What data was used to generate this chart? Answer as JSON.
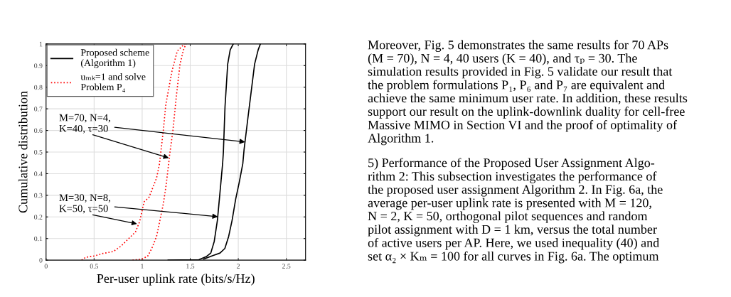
{
  "chart_data": {
    "type": "line",
    "xlabel": "Per-user uplink rate (bits/s/Hz)",
    "ylabel": "Cumulative distribution",
    "xlim": [
      0,
      2.7
    ],
    "xticks": [
      0,
      {
        "value": 0.5,
        "label": "0.5"
      },
      1,
      {
        "value": 1.5,
        "label": "1.5"
      },
      2,
      {
        "value": 2.5,
        "label": "2.5"
      }
    ],
    "ylim": [
      0,
      1
    ],
    "yticks": [
      0,
      0.1,
      0.2,
      0.3,
      0.4,
      0.5,
      0.6,
      0.7,
      0.8,
      0.9,
      1
    ],
    "grid": true,
    "legend": "top left",
    "marker": "none",
    "series": [
      {
        "name": "Proposed scheme\n(Algorithm 1)",
        "color": "#000000",
        "line_style": "solid",
        "x": [
          1.27,
          1.59,
          1.665,
          1.714,
          1.75,
          1.783,
          1.81,
          1.837,
          1.845,
          1.862,
          1.89,
          1.916,
          1.948
        ],
        "values": [
          0,
          0.002,
          0.016,
          0.033,
          0.087,
          0.185,
          0.315,
          0.446,
          0.5,
          0.71,
          0.907,
          0.973,
          1.0
        ]
      },
      {
        "color": "#000000",
        "line_style": "solid",
        "x": [
          1.64,
          1.74,
          1.81,
          1.86,
          1.9,
          1.936,
          1.973,
          2.01,
          2.047,
          2.06,
          2.1,
          2.13,
          2.17,
          2.207,
          2.23
        ],
        "values": [
          0.005,
          0.022,
          0.033,
          0.054,
          0.11,
          0.185,
          0.283,
          0.36,
          0.446,
          0.51,
          0.657,
          0.764,
          0.907,
          0.973,
          1.0
        ]
      },
      {
        "name": "uₘₖ=1 and solve\nProblem P₄",
        "color": "#ff0000",
        "line_style": "dotted",
        "x": [
          0.37,
          0.41,
          0.51,
          0.58,
          0.7,
          0.78,
          0.86,
          0.93,
          0.975,
          1.02,
          1.07,
          1.15,
          1.18,
          1.22,
          1.246,
          1.31,
          1.365,
          1.44
        ],
        "values": [
          0,
          0.013,
          0.02,
          0.03,
          0.04,
          0.065,
          0.1,
          0.13,
          0.18,
          0.27,
          0.29,
          0.38,
          0.445,
          0.6,
          0.72,
          0.874,
          0.967,
          1.0
        ]
      },
      {
        "color": "#ff0000",
        "line_style": "dotted",
        "x": [
          0.9,
          1.0,
          1.06,
          1.1,
          1.15,
          1.185,
          1.22,
          1.246,
          1.276,
          1.283,
          1.32,
          1.357,
          1.394,
          1.43,
          1.456
        ],
        "values": [
          0,
          0.005,
          0.02,
          0.054,
          0.11,
          0.185,
          0.26,
          0.337,
          0.446,
          0.478,
          0.6,
          0.764,
          0.907,
          0.973,
          1.0
        ]
      }
    ],
    "annotations": [
      {
        "text": "M=70, N=4,\nK=40, τ=30",
        "x": 2.07,
        "y": 0.547
      },
      {
        "text": "M=30, N=8,\nK=50, τ=50",
        "x": 1.788,
        "y": 0.201
      },
      "Moreover, Fig. 5 demonstrates the same results for 70 APs\n(M = 70), N = 4, 40 users (K = 40), and τₚ = 30. The\nsimulation results provided in Fig. 5 validate our result that\nthe problem formulations P₁, P₆ and P₇ are equivalent and\nachieve the same minimum user rate. In addition, these results\nsupport our result on the uplink-downlink duality for cell-free\nMassive MIMO in Section VI and the proof of optimality of\nAlgorithm 1.",
      "5) Performance of the Proposed User Assignment Algo-\nrithm 2: This subsection investigates the performance of\nthe proposed user assignment Algorithm 2. In Fig. 6a, the\naverage per-user uplink rate is presented with M = 120,\nN = 2, K = 50, orthogonal pilot sequences and random\npilot assignment with D = 1 km, versus the total number\nof active users per AP. Here, we used inequality (40) and\nset α₂ × Kₘ = 100 for all curves in Fig. 6a. The optimum"
    ]
  }
}
